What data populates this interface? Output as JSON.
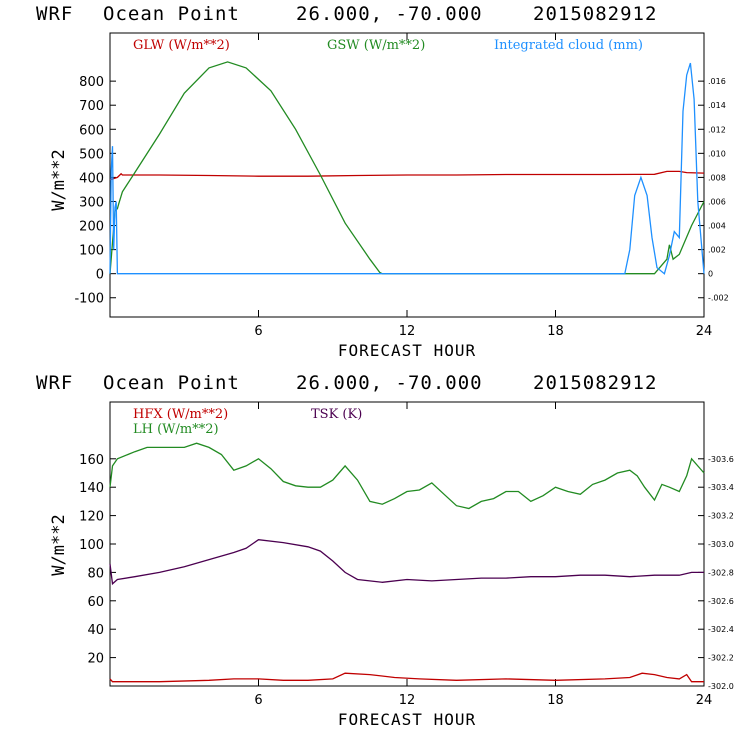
{
  "chart_data": [
    {
      "type": "line",
      "header": {
        "model": "WRF",
        "station": "Ocean Point",
        "coords": "26.000, -70.000",
        "date": "2015082912"
      },
      "xlabel": "FORECAST HOUR",
      "ylabel": "W/m**2",
      "xlim": [
        0,
        24
      ],
      "x_ticks": [
        "6",
        "12",
        "18",
        "24"
      ],
      "ylim": [
        -180,
        1000
      ],
      "y_ticks": [
        "-100",
        "0",
        "100",
        "200",
        "300",
        "400",
        "500",
        "600",
        "700",
        "800"
      ],
      "y2_ticks": [
        "-.002",
        "0",
        ".002",
        ".004",
        ".006",
        ".008",
        ".010",
        ".012",
        ".014",
        ".016"
      ],
      "y2lim": [
        -0.0036,
        0.02
      ],
      "colors": {
        "glw": "#c00000",
        "gsw": "#228b22",
        "cloud": "#1e90ff"
      },
      "series": [
        {
          "name": "GLW (W/m**2)",
          "axis": "left",
          "x": [
            0,
            0.3,
            0.45,
            0.5,
            2,
            4,
            6,
            8,
            10,
            12,
            14,
            16,
            18,
            20,
            22,
            22.5,
            23,
            23.3,
            24
          ],
          "values": [
            390,
            400,
            415,
            410,
            410,
            408,
            405,
            405,
            408,
            410,
            410,
            412,
            412,
            412,
            413,
            425,
            425,
            420,
            418
          ]
        },
        {
          "name": "GSW (W/m**2)",
          "axis": "left",
          "x": [
            0,
            0.2,
            0.3,
            0.35,
            0.5,
            1,
            2,
            3,
            4,
            4.75,
            5.5,
            6.5,
            7.5,
            8.5,
            9.5,
            10.5,
            10.9,
            11,
            12,
            14,
            16,
            18,
            20,
            21,
            22,
            22.5,
            22.6,
            22.75,
            23,
            23.5,
            24
          ],
          "values": [
            0,
            260,
            270,
            290,
            340,
            420,
            580,
            750,
            855,
            880,
            855,
            760,
            600,
            410,
            210,
            60,
            5,
            0,
            0,
            0,
            0,
            0,
            0,
            0,
            0,
            60,
            120,
            60,
            80,
            200,
            300
          ]
        },
        {
          "name": "Integrated cloud (mm)",
          "axis": "right",
          "x": [
            0,
            0.05,
            0.1,
            0.15,
            0.2,
            0.25,
            0.3,
            1,
            6,
            12,
            18,
            20.8,
            21,
            21.2,
            21.45,
            21.7,
            21.9,
            22.1,
            22.4,
            22.6,
            22.8,
            23,
            23.15,
            23.3,
            23.45,
            23.6,
            23.75,
            24
          ],
          "values": [
            0,
            0.0085,
            0.0106,
            0.002,
            0.0055,
            0.006,
            0,
            0,
            0,
            0,
            0,
            0,
            0.002,
            0.0065,
            0.008,
            0.0065,
            0.003,
            0.0005,
            0,
            0.0015,
            0.0035,
            0.003,
            0.0135,
            0.0165,
            0.0175,
            0.0145,
            0.006,
            0
          ]
        }
      ]
    },
    {
      "type": "line",
      "header": {
        "model": "WRF",
        "station": "Ocean Point",
        "coords": "26.000, -70.000",
        "date": "2015082912"
      },
      "xlabel": "FORECAST HOUR",
      "ylabel": "W/m**2",
      "xlim": [
        0,
        24
      ],
      "x_ticks": [
        "6",
        "12",
        "18",
        "24"
      ],
      "ylim": [
        0,
        200
      ],
      "y_ticks": [
        "20",
        "40",
        "60",
        "80",
        "100",
        "120",
        "140",
        "160"
      ],
      "y2_ticks": [
        "302.0",
        "302.2",
        "302.4",
        "302.6",
        "302.8",
        "303.0",
        "303.2",
        "303.4",
        "303.6"
      ],
      "y2lim": [
        302.0,
        304.0
      ],
      "colors": {
        "hfx": "#c00000",
        "lh": "#228b22",
        "tsk": "#4b0050"
      },
      "series": [
        {
          "name": "HFX (W/m**2)",
          "axis": "left",
          "x": [
            0,
            0.1,
            0.5,
            2,
            4,
            5,
            6,
            7,
            8,
            9,
            9.5,
            10.5,
            11.5,
            12.5,
            14,
            16,
            18,
            20,
            21,
            21.5,
            22,
            22.5,
            23,
            23.3,
            23.5,
            24
          ],
          "values": [
            5,
            3,
            3,
            3,
            4,
            5,
            5,
            4,
            4,
            5,
            9,
            8,
            6,
            5,
            4,
            5,
            4,
            5,
            6,
            9,
            8,
            6,
            5,
            8,
            3,
            3
          ]
        },
        {
          "name": "LH (W/m**2)",
          "axis": "left",
          "x": [
            0,
            0.1,
            0.3,
            1,
            1.5,
            2,
            3,
            3.5,
            4,
            4.5,
            5,
            5.5,
            6,
            6.5,
            7,
            7.5,
            8,
            8.5,
            9,
            9.5,
            10,
            10.5,
            11,
            11.5,
            12,
            12.5,
            13,
            13.5,
            14,
            14.5,
            15,
            15.5,
            16,
            16.5,
            17,
            17.5,
            18,
            18.5,
            19,
            19.5,
            20,
            20.5,
            21,
            21.3,
            21.6,
            22,
            22.3,
            22.6,
            23,
            23.3,
            23.5,
            24
          ],
          "values": [
            140,
            155,
            160,
            165,
            168,
            168,
            168,
            171,
            168,
            163,
            152,
            155,
            160,
            153,
            144,
            141,
            140,
            140,
            145,
            155,
            145,
            130,
            128,
            132,
            137,
            138,
            143,
            135,
            127,
            125,
            130,
            132,
            137,
            137,
            130,
            134,
            140,
            137,
            135,
            142,
            145,
            150,
            152,
            148,
            140,
            131,
            142,
            140,
            137,
            148,
            160,
            150
          ]
        },
        {
          "name": "TSK (K)",
          "axis": "right",
          "x": [
            0,
            0.1,
            0.3,
            1,
            2,
            3,
            4,
            5,
            5.5,
            6,
            7,
            8,
            8.5,
            9,
            9.5,
            10,
            11,
            12,
            13,
            14,
            15,
            16,
            17,
            18,
            19,
            20,
            21,
            22,
            22.5,
            23,
            23.5,
            24
          ],
          "values": [
            302.86,
            302.72,
            302.75,
            302.77,
            302.8,
            302.84,
            302.89,
            302.94,
            302.97,
            303.03,
            303.01,
            302.98,
            302.95,
            302.88,
            302.8,
            302.75,
            302.73,
            302.75,
            302.74,
            302.75,
            302.76,
            302.76,
            302.77,
            302.77,
            302.78,
            302.78,
            302.77,
            302.78,
            302.78,
            302.78,
            302.8,
            302.8
          ]
        }
      ]
    }
  ]
}
